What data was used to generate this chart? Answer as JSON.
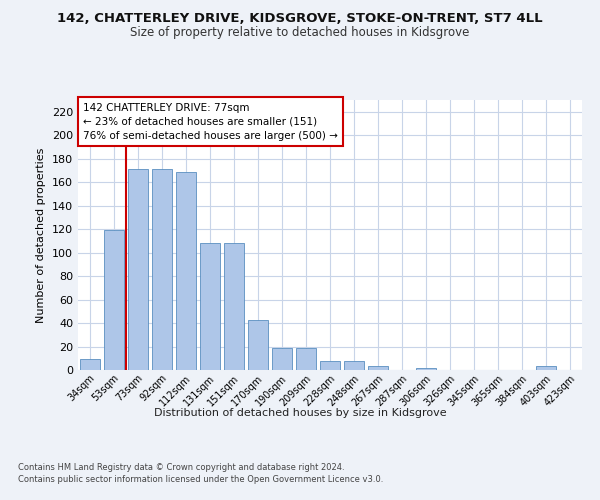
{
  "title_line1": "142, CHATTERLEY DRIVE, KIDSGROVE, STOKE-ON-TRENT, ST7 4LL",
  "title_line2": "Size of property relative to detached houses in Kidsgrove",
  "xlabel": "Distribution of detached houses by size in Kidsgrove",
  "ylabel": "Number of detached properties",
  "categories": [
    "34sqm",
    "53sqm",
    "73sqm",
    "92sqm",
    "112sqm",
    "131sqm",
    "151sqm",
    "170sqm",
    "190sqm",
    "209sqm",
    "228sqm",
    "248sqm",
    "267sqm",
    "287sqm",
    "306sqm",
    "326sqm",
    "345sqm",
    "365sqm",
    "384sqm",
    "403sqm",
    "423sqm"
  ],
  "values": [
    9,
    119,
    171,
    171,
    169,
    108,
    108,
    43,
    19,
    19,
    8,
    8,
    3,
    0,
    2,
    0,
    0,
    0,
    0,
    3,
    0
  ],
  "bar_color": "#aec6e8",
  "bar_edge_color": "#5a8fc0",
  "property_line_x": 1.5,
  "annotation_title": "142 CHATTERLEY DRIVE: 77sqm",
  "annotation_line2": "← 23% of detached houses are smaller (151)",
  "annotation_line3": "76% of semi-detached houses are larger (500) →",
  "ylim": [
    0,
    230
  ],
  "yticks": [
    0,
    20,
    40,
    60,
    80,
    100,
    120,
    140,
    160,
    180,
    200,
    220
  ],
  "footer_line1": "Contains HM Land Registry data © Crown copyright and database right 2024.",
  "footer_line2": "Contains public sector information licensed under the Open Government Licence v3.0.",
  "bg_color": "#eef2f8",
  "plot_bg_color": "#ffffff",
  "grid_color": "#c8d4e8",
  "annotation_box_color": "#ffffff",
  "annotation_box_edge": "#cc0000",
  "red_line_color": "#cc0000"
}
